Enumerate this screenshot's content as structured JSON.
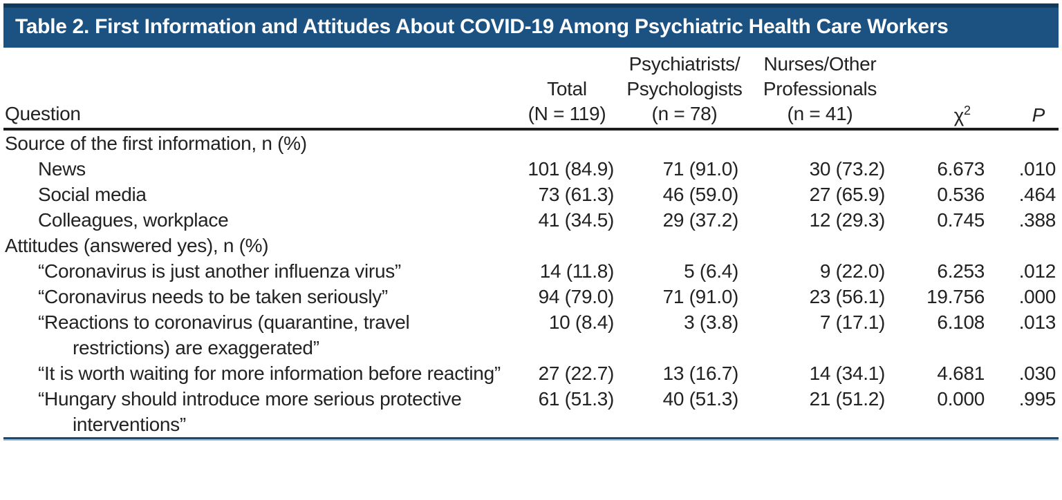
{
  "title": "Table 2. First Information and Attitudes About COVID-19 Among Psychiatric Health Care Workers",
  "colors": {
    "title_bar_background": "#1b5282",
    "title_bar_top_stripe": "#0e3a5d",
    "header_rule": "#1c1c1c",
    "bottom_rule_dark": "#1a4a72",
    "bottom_rule_light": "#93bbda",
    "text": "#222222"
  },
  "header": {
    "question": "Question",
    "total": {
      "line1": "Total",
      "line2": "(N = 119)"
    },
    "psych": {
      "line1": "Psychiatrists/",
      "line2": "Psychologists",
      "line3": "(n = 78)"
    },
    "nurses": {
      "line1": "Nurses/Other",
      "line2": "Professionals",
      "line3": "(n = 41)"
    },
    "chi": {
      "base": "χ",
      "sup": "2"
    },
    "p": "P"
  },
  "rows": [
    {
      "type": "section",
      "question": "Source of the first information, n (%)"
    },
    {
      "type": "item",
      "question": "News",
      "total": "101 (84.9)",
      "psych": "71 (91.0)",
      "nurses": "30 (73.2)",
      "chi2": "6.673",
      "p": ".010"
    },
    {
      "type": "item",
      "question": "Social media",
      "total": "73 (61.3)",
      "psych": "46 (59.0)",
      "nurses": "27 (65.9)",
      "chi2": "0.536",
      "p": ".464"
    },
    {
      "type": "item",
      "question": "Colleagues, workplace",
      "total": "41 (34.5)",
      "psych": "29 (37.2)",
      "nurses": "12 (29.3)",
      "chi2": "0.745",
      "p": ".388"
    },
    {
      "type": "section",
      "question": "Attitudes (answered yes), n (%)"
    },
    {
      "type": "item",
      "question": "“Coronavirus is just another influenza virus”",
      "total": "14 (11.8)",
      "psych": "5 (6.4)",
      "nurses": "9 (22.0)",
      "chi2": "6.253",
      "p": ".012"
    },
    {
      "type": "item",
      "question": "“Coronavirus needs to be taken seriously”",
      "total": "94 (79.0)",
      "psych": "71 (91.0)",
      "nurses": "23 (56.1)",
      "chi2": "19.756",
      "p": ".000"
    },
    {
      "type": "item",
      "question": "“Reactions to coronavirus (quarantine, travel restrictions) are exaggerated”",
      "total": "10 (8.4)",
      "psych": "3 (3.8)",
      "nurses": "7 (17.1)",
      "chi2": "6.108",
      "p": ".013"
    },
    {
      "type": "item",
      "question": "“It is worth waiting for more information before reacting”",
      "total": "27 (22.7)",
      "psych": "13 (16.7)",
      "nurses": "14 (34.1)",
      "chi2": "4.681",
      "p": ".030"
    },
    {
      "type": "item",
      "question": "“Hungary should introduce more serious protective interventions”",
      "total": "61 (51.3)",
      "psych": "40 (51.3)",
      "nurses": "21 (51.2)",
      "chi2": "0.000",
      "p": ".995"
    }
  ],
  "chart_data": {
    "type": "table",
    "title": "Table 2. First Information and Attitudes About COVID-19 Among Psychiatric Health Care Workers",
    "columns": [
      "Question",
      "Total (N = 119)",
      "Psychiatrists/Psychologists (n = 78)",
      "Nurses/Other Professionals (n = 41)",
      "χ2",
      "P"
    ],
    "sections": [
      {
        "label": "Source of the first information, n (%)",
        "rows": [
          [
            "News",
            "101 (84.9)",
            "71 (91.0)",
            "30 (73.2)",
            6.673,
            0.01
          ],
          [
            "Social media",
            "73 (61.3)",
            "46 (59.0)",
            "27 (65.9)",
            0.536,
            0.464
          ],
          [
            "Colleagues, workplace",
            "41 (34.5)",
            "29 (37.2)",
            "12 (29.3)",
            0.745,
            0.388
          ]
        ]
      },
      {
        "label": "Attitudes (answered yes), n (%)",
        "rows": [
          [
            "“Coronavirus is just another influenza virus”",
            "14 (11.8)",
            "5 (6.4)",
            "9 (22.0)",
            6.253,
            0.012
          ],
          [
            "“Coronavirus needs to be taken seriously”",
            "94 (79.0)",
            "71 (91.0)",
            "23 (56.1)",
            19.756,
            0.0
          ],
          [
            "“Reactions to coronavirus (quarantine, travel restrictions) are exaggerated”",
            "10 (8.4)",
            "3 (3.8)",
            "7 (17.1)",
            6.108,
            0.013
          ],
          [
            "“It is worth waiting for more information before reacting”",
            "27 (22.7)",
            "13 (16.7)",
            "14 (34.1)",
            4.681,
            0.03
          ],
          [
            "“Hungary should introduce more serious protective interventions”",
            "61 (51.3)",
            "40 (51.3)",
            "21 (51.2)",
            0.0,
            0.995
          ]
        ]
      }
    ]
  }
}
